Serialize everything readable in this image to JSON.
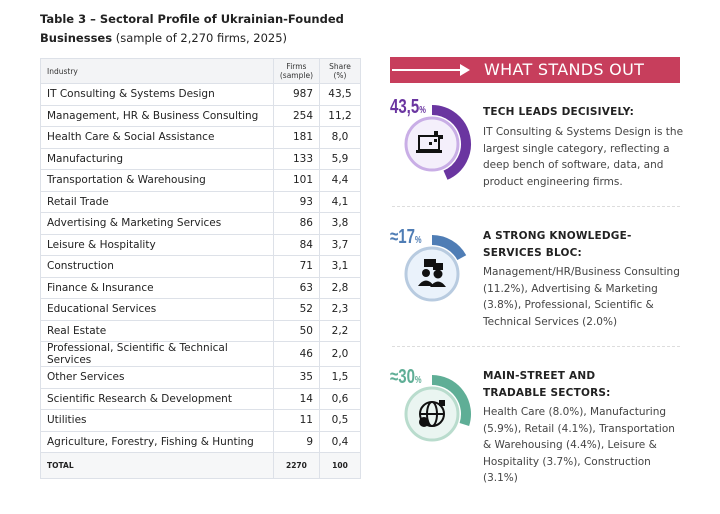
{
  "title": {
    "bold": "Table 3 – Sectoral Profile of Ukrainian-Founded Businesses",
    "rest": " (sample of 2,270 firms, 2025)"
  },
  "table": {
    "headers": {
      "industry": "Industry",
      "firms": "Firms (sample)",
      "share": "Share (%)"
    },
    "rows": [
      {
        "industry": "IT Consulting & Systems Design",
        "firms": "987",
        "share": "43,5"
      },
      {
        "industry": "Management, HR & Business Consulting",
        "firms": "254",
        "share": "11,2"
      },
      {
        "industry": "Health Care & Social Assistance",
        "firms": "181",
        "share": "8,0"
      },
      {
        "industry": "Manufacturing",
        "firms": "133",
        "share": "5,9"
      },
      {
        "industry": "Transportation & Warehousing",
        "firms": "101",
        "share": "4,4"
      },
      {
        "industry": "Retail Trade",
        "firms": "93",
        "share": "4,1"
      },
      {
        "industry": "Advertising & Marketing Services",
        "firms": "86",
        "share": "3,8"
      },
      {
        "industry": "Leisure & Hospitality",
        "firms": "84",
        "share": "3,7"
      },
      {
        "industry": "Construction",
        "firms": "71",
        "share": "3,1"
      },
      {
        "industry": "Finance & Insurance",
        "firms": "63",
        "share": "2,8"
      },
      {
        "industry": "Educational Services",
        "firms": "52",
        "share": "2,3"
      },
      {
        "industry": "Real Estate",
        "firms": "50",
        "share": "2,2"
      },
      {
        "industry": "Professional, Scientific & Technical Services",
        "firms": "46",
        "share": "2,0"
      },
      {
        "industry": "Other Services",
        "firms": "35",
        "share": "1,5"
      },
      {
        "industry": "Scientific Research & Development",
        "firms": "14",
        "share": "0,6"
      },
      {
        "industry": "Utilities",
        "firms": "11",
        "share": "0,5"
      },
      {
        "industry": "Agriculture, Forestry, Fishing & Hunting",
        "firms": "9",
        "share": "0,4"
      }
    ],
    "total": {
      "label": "TOTAL",
      "firms": "2270",
      "share": "100"
    }
  },
  "panel": {
    "banner": "WHAT STANDS OUT",
    "items": [
      {
        "value": "43,5",
        "unit": "%",
        "fraction": 0.435,
        "color": "#6a35a0",
        "icon": "laptop-icon",
        "heading": "TECH LEADS DECISIVELY:",
        "text": "IT Consulting & Systems Design is the largest single category, reflecting a deep bench of software, data, and product engineering firms."
      },
      {
        "value": "≈17",
        "unit": "%",
        "fraction": 0.17,
        "color": "#4f7db5",
        "icon": "consulting-people-icon",
        "heading": "A STRONG KNOWLEDGE-SERVICES BLOC:",
        "text": "Management/HR/Business Consulting (11.2%), Advertising & Marketing (3.8%), Professional, Scientific & Technical Services (2.0%)"
      },
      {
        "value": "≈30",
        "unit": "%",
        "fraction": 0.3,
        "color": "#5fae96",
        "icon": "globe-person-icon",
        "heading": "MAIN-STREET AND TRADABLE SECTORS:",
        "text": "Health Care (8.0%), Manufacturing (5.9%), Retail (4.1%), Transportation & Warehousing (4.4%), Leisure & Hospitality (3.7%), Construction (3.1%)"
      }
    ]
  }
}
